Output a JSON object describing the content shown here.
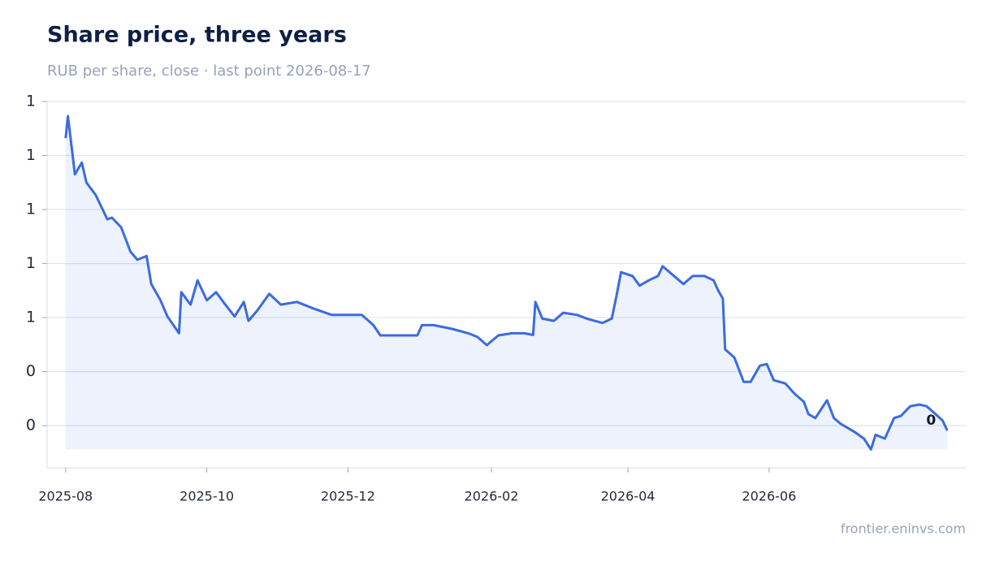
{
  "chart_data": {
    "type": "line",
    "title": "Share price, three years",
    "subtitle": "RUB per share, close · last point 2026-08-17",
    "source": "frontier.eninvs.com",
    "x": [
      "2025-08-01",
      "2025-08-02",
      "2025-08-04",
      "2025-08-05",
      "2025-08-08",
      "2025-08-10",
      "2025-08-14",
      "2025-08-19",
      "2025-08-21",
      "2025-08-25",
      "2025-08-29",
      "2025-09-01",
      "2025-09-05",
      "2025-09-07",
      "2025-09-11",
      "2025-09-14",
      "2025-09-19",
      "2025-09-20",
      "2025-09-24",
      "2025-09-27",
      "2025-10-01",
      "2025-10-05",
      "2025-10-09",
      "2025-10-13",
      "2025-10-17",
      "2025-10-19",
      "2025-10-23",
      "2025-10-28",
      "2025-11-02",
      "2025-11-09",
      "2025-11-16",
      "2025-11-24",
      "2025-12-01",
      "2025-12-07",
      "2025-12-12",
      "2025-12-15",
      "2025-12-24",
      "2025-12-31",
      "2026-01-02",
      "2026-01-07",
      "2026-01-15",
      "2026-01-22",
      "2026-01-26",
      "2026-01-30",
      "2026-02-04",
      "2026-02-10",
      "2026-02-15",
      "2026-02-19",
      "2026-02-20",
      "2026-02-23",
      "2026-02-28",
      "2026-03-04",
      "2026-03-10",
      "2026-03-15",
      "2026-03-21",
      "2026-03-25",
      "2026-03-27",
      "2026-03-29",
      "2026-04-03",
      "2026-04-06",
      "2026-04-10",
      "2026-04-14",
      "2026-04-16",
      "2026-04-19",
      "2026-04-25",
      "2026-04-29",
      "2026-05-04",
      "2026-05-08",
      "2026-05-10",
      "2026-05-12",
      "2026-05-13",
      "2026-05-17",
      "2026-05-21",
      "2026-05-24",
      "2026-05-28",
      "2026-05-31",
      "2026-06-03",
      "2026-06-08",
      "2026-06-12",
      "2026-06-16",
      "2026-06-18",
      "2026-06-21",
      "2026-06-26",
      "2026-06-29",
      "2026-07-02",
      "2026-07-08",
      "2026-07-12",
      "2026-07-15",
      "2026-07-17",
      "2026-07-21",
      "2026-07-25",
      "2026-07-28",
      "2026-08-01",
      "2026-08-05",
      "2026-08-08",
      "2026-08-12",
      "2026-08-15",
      "2026-08-17"
    ],
    "series": [
      {
        "name": "Close",
        "color": "#3b6be0",
        "values": [
          0.932,
          0.973,
          0.902,
          0.865,
          0.887,
          0.85,
          0.827,
          0.782,
          0.785,
          0.767,
          0.722,
          0.707,
          0.714,
          0.662,
          0.632,
          0.602,
          0.571,
          0.647,
          0.624,
          0.669,
          0.632,
          0.647,
          0.624,
          0.602,
          0.629,
          0.594,
          0.614,
          0.644,
          0.624,
          0.629,
          0.617,
          0.605,
          0.605,
          0.605,
          0.586,
          0.567,
          0.567,
          0.567,
          0.586,
          0.586,
          0.579,
          0.571,
          0.564,
          0.549,
          0.567,
          0.571,
          0.571,
          0.568,
          0.629,
          0.598,
          0.594,
          0.609,
          0.605,
          0.597,
          0.59,
          0.598,
          0.639,
          0.684,
          0.677,
          0.659,
          0.669,
          0.677,
          0.695,
          0.684,
          0.662,
          0.677,
          0.677,
          0.669,
          0.65,
          0.635,
          0.541,
          0.526,
          0.481,
          0.481,
          0.511,
          0.514,
          0.484,
          0.478,
          0.459,
          0.444,
          0.421,
          0.414,
          0.447,
          0.414,
          0.403,
          0.388,
          0.376,
          0.356,
          0.383,
          0.376,
          0.414,
          0.418,
          0.436,
          0.439,
          0.436,
          0.421,
          0.409,
          0.391
        ]
      }
    ],
    "xlim": [
      "2025-07-24",
      "2026-08-25"
    ],
    "xticks": [
      "2025-08",
      "2025-10",
      "2025-12",
      "2026-02",
      "2026-04",
      "2026-06"
    ],
    "ylim": [
      0.322,
      1.0
    ],
    "yticks": [
      {
        "value": 1.0,
        "label": "1"
      },
      {
        "value": 0.9,
        "label": "1"
      },
      {
        "value": 0.8,
        "label": "1"
      },
      {
        "value": 0.7,
        "label": "1"
      },
      {
        "value": 0.6,
        "label": "1"
      },
      {
        "value": 0.5,
        "label": "0"
      },
      {
        "value": 0.4,
        "label": "0"
      }
    ],
    "grid": true,
    "annotations": [
      {
        "x": "2026-08-17",
        "y": 0.391,
        "label": "0"
      }
    ]
  }
}
